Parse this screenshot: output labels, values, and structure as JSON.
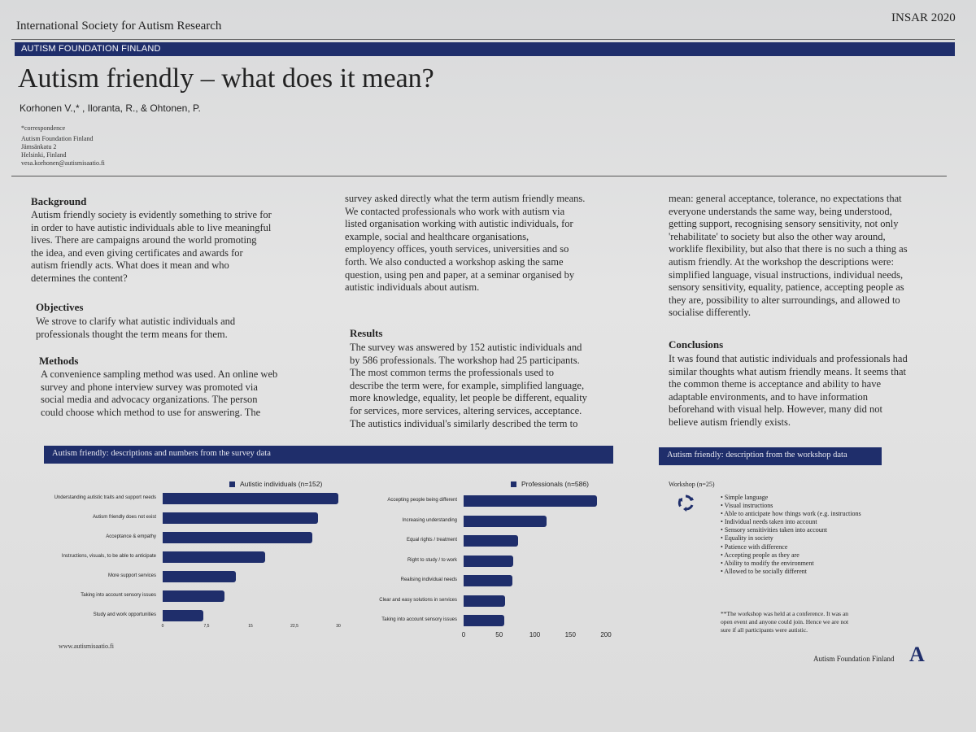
{
  "header": {
    "org": "International Society for Autism Research",
    "conference": "INSAR 2020",
    "band": "AUTISM FOUNDATION FINLAND",
    "title": "Autism friendly – what does it mean?",
    "authors": "Korhonen V.,* , Iloranta, R., & Ohtonen, P.",
    "contact": [
      "*correspondence",
      "Autism Foundation Finland",
      "Jämsänkatu 2",
      "Helsinki, Finland",
      "vesa.korhonen@autismisaatio.fi"
    ]
  },
  "background": {
    "heading": "Background",
    "lines": [
      "Autism friendly society is evidently something to strive for",
      "in order to have autistic individuals able to live meaningful",
      "lives. There are campaigns around the world promoting",
      "the idea, and even giving certificates and awards for",
      "autism friendly acts. What does it mean and who",
      "determines the content?"
    ]
  },
  "objectives": {
    "heading": "Objectives",
    "lines": [
      "We strove to clarify what autistic individuals and",
      "professionals thought the term means for them."
    ]
  },
  "methods": {
    "heading": "Methods",
    "lines": [
      "A convenience sampling method was used. An online web",
      "survey and phone interview survey was promoted via",
      "social media and advocacy organizations. The person",
      "could choose which method to use for answering. The"
    ]
  },
  "methods_cont": {
    "lines": [
      "survey asked directly what the term autism friendly means.",
      "We contacted professionals who work with autism via",
      "listed organisation working with autistic individuals, for",
      "example, social and healthcare organisations,",
      "employency offices, youth services, universities and so",
      "forth. We also conducted a workshop asking the same",
      "question, using pen and paper, at a seminar organised by",
      "autistic individuals about autism."
    ]
  },
  "results": {
    "heading": "Results",
    "lines": [
      "The survey was answered by 152 autistic individuals and",
      "by 586 professionals. The workshop had 25 participants.",
      "The most common terms the professionals used to",
      "describe the term were, for example, simplified language,",
      "more knowledge, equality, let people be different, equality",
      "for services, more services, altering services, acceptance.",
      "The autistics individual's similarly described the term to"
    ]
  },
  "results_cont": {
    "lines": [
      "mean: general acceptance, tolerance, no expectations that",
      "everyone understands the same way, being understood,",
      "getting support, recognising sensory sensitivity, not only",
      "'rehabilitate' to society but also the other way around,",
      "worklife flexibility, but also that there is no such a thing as",
      "autism friendly. At the workshop the descriptions were:",
      "simplified language, visual instructions, individual needs,",
      "sensory sensitivity, equality, patience, accepting people as",
      "they are, possibility to alter surroundings, and allowed to",
      "socialise differently."
    ]
  },
  "conclusions": {
    "heading": "Conclusions",
    "lines": [
      "It was found that autistic individuals and professionals had",
      "similar thoughts what autism friendly means. It seems that",
      "the common theme is acceptance and ability to have",
      "adaptable environments, and to have information",
      "beforehand with visual help. However, many did not",
      "believe autism friendly exists."
    ]
  },
  "survey_panel": {
    "title": "Autism friendly: descriptions and numbers from the survey data"
  },
  "workshop_panel": {
    "title": "Autism friendly: description from the workshop data",
    "label": "Workshop (n=25)",
    "icon": "recycle-arrows-icon",
    "items": [
      "Simple language",
      "Visual instructions",
      "Able to anticipate how things work (e.g. instructions",
      "Individual needs taken into account",
      "Sensory sensitivities taken into account",
      "Equality in society",
      "Patience with difference",
      "Accepting people as they are",
      "Ability to modify the environment",
      "Allowed to be socially different"
    ],
    "note": [
      "**The workshop was held at a conference. It was an",
      "open event and anyone could join. Hence we are not",
      "sure if all participants were autistic."
    ]
  },
  "footer": {
    "url": "www.autismisaatio.fi",
    "org": "Autism Foundation Finland",
    "logo": "A"
  },
  "colors": {
    "navy": "#1f2e6b"
  },
  "chart_data": [
    {
      "type": "bar",
      "orientation": "horizontal",
      "series": [
        {
          "name": "Autistic individuals (n=152)"
        }
      ],
      "categories": [
        "Understanding autistic traits and support needs",
        "Autism friendly does not exist",
        "Acceptance & empathy",
        "Instructions, visuals, to be able to anticipate",
        "More support services",
        "Taking into account sensory issues",
        "Study and work opportunities"
      ],
      "values": [
        30,
        26.5,
        25.5,
        17.5,
        12.5,
        10.5,
        7
      ],
      "xlim": [
        0,
        30
      ],
      "xticks": [
        "0",
        "7,5",
        "15",
        "22,5",
        "30"
      ]
    },
    {
      "type": "bar",
      "orientation": "horizontal",
      "series": [
        {
          "name": "Professionals (n=586)"
        }
      ],
      "categories": [
        "Accepting people being different",
        "Increasing understanding",
        "Equal rights / treatment",
        "Right to study / to work",
        "Realising individual needs",
        "Clear and easy solutions in services",
        "Taking into account sensory issues"
      ],
      "values": [
        187,
        117,
        77,
        70,
        69,
        58,
        57
      ],
      "xlim": [
        0,
        200
      ],
      "xticks": [
        "0",
        "50",
        "100",
        "150",
        "200"
      ]
    }
  ]
}
